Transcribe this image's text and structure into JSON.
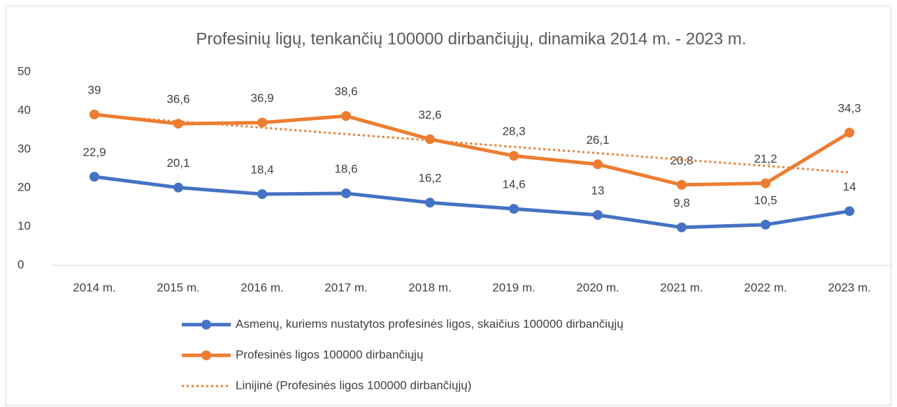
{
  "chart_data": {
    "type": "line",
    "title": "Profesinių ligų, tenkančių 100000 dirbančiųjų, dinamika 2014 m. - 2023 m.",
    "categories": [
      "2014 m.",
      "2015 m.",
      "2016 m.",
      "2017 m.",
      "2018 m.",
      "2019 m.",
      "2020 m.",
      "2021 m.",
      "2022 m.",
      "2023 m."
    ],
    "series": [
      {
        "name": "Asmenų, kuriems nustatytos profesinės ligos, skaičius 100000 dirbančiųjų",
        "color": "#4472c4",
        "style": "solid",
        "values": [
          22.9,
          20.1,
          18.4,
          18.6,
          16.2,
          14.6,
          13,
          9.8,
          10.5,
          14
        ],
        "value_labels": [
          "22,9",
          "20,1",
          "18,4",
          "18,6",
          "16,2",
          "14,6",
          "13",
          "9,8",
          "10,5",
          "14"
        ]
      },
      {
        "name": "Profesinės ligos 100000 dirbančiųjų",
        "color": "#ed7d31",
        "style": "solid",
        "values": [
          39,
          36.6,
          36.9,
          38.6,
          32.6,
          28.3,
          26.1,
          20.8,
          21.2,
          34.3
        ],
        "value_labels": [
          "39",
          "36,6",
          "36,9",
          "38,6",
          "32,6",
          "28,3",
          "26,1",
          "20,8",
          "21,2",
          "34,3"
        ]
      },
      {
        "name": "Linijinė (Profesinės ligos 100000 dirbančiųjų)",
        "color": "#ed7d31",
        "style": "dotted",
        "values": [
          38.9,
          37.2,
          35.6,
          33.9,
          32.3,
          30.6,
          29.0,
          27.3,
          25.7,
          24.0
        ]
      }
    ],
    "ylim": [
      0,
      50
    ],
    "yticks": [
      0,
      10,
      20,
      30,
      40,
      50
    ],
    "grid": false,
    "legend": "bottom"
  }
}
